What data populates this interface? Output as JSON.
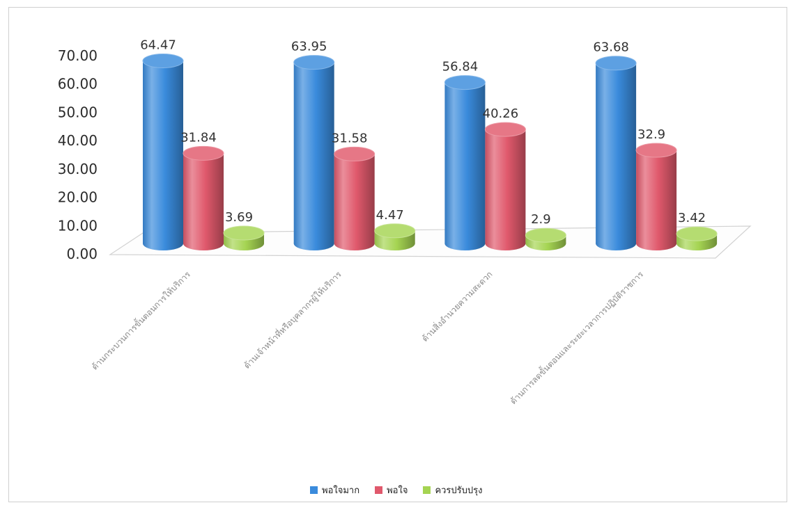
{
  "chart_data": {
    "type": "bar",
    "bar_shape": "cylinder",
    "categories": [
      "ด้านกระบวนการขั้นตอนการให้บริการ",
      "ด้านเจ้าหน้าที่หรือบุคลากรผู้ให้บริการ",
      "ด้านสิ่งอำนวยความสะดวก",
      "ด้านการลดขั้นตอนและระยะเวลาการปฏิบัติราชการ"
    ],
    "series": [
      {
        "name": "พอใจมาก",
        "color": "#3a8bdc",
        "values": [
          64.47,
          63.95,
          56.84,
          63.68
        ]
      },
      {
        "name": "พอใจ",
        "color": "#e0596c",
        "values": [
          31.84,
          31.58,
          40.26,
          32.9
        ]
      },
      {
        "name": "ควรปรับปรุง",
        "color": "#a5d452",
        "values": [
          3.69,
          4.47,
          2.9,
          3.42
        ]
      }
    ],
    "ylim": [
      0,
      70
    ],
    "y_tick_labels": [
      "0.00",
      "10.00",
      "20.00",
      "30.00",
      "40.00",
      "50.00",
      "60.00",
      "70.00"
    ],
    "data_labels": true,
    "grid": false,
    "legend": "bottom"
  }
}
